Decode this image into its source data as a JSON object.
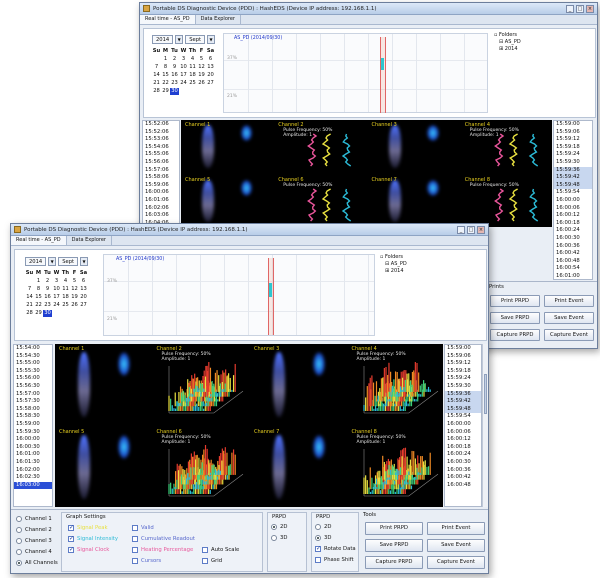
{
  "colors": {
    "signal_peak": "#e8e040",
    "signal_intensity": "#2bbad6",
    "signal_clock": "#e8559a",
    "valid": "#5566cc",
    "selection": "#2b4fd6"
  },
  "back_window": {
    "title": "Portable DS Diagnostic Device (PDD) : HashEDS (Device IP address: 192.168.1.1)",
    "tabs": [
      "Real time - AS_PD",
      "Data Explorer"
    ],
    "calendar": {
      "month": "Sept",
      "year": "2014",
      "headers": [
        "Su",
        "M",
        "Tu",
        "W",
        "Th",
        "F",
        "Sa"
      ],
      "days": [
        "",
        "1",
        "2",
        "3",
        "4",
        "5",
        "6",
        "7",
        "8",
        "9",
        "10",
        "11",
        "12",
        "13",
        "14",
        "15",
        "16",
        "17",
        "18",
        "19",
        "20",
        "21",
        "22",
        "23",
        "24",
        "25",
        "26",
        "27",
        "28",
        "29",
        "30"
      ],
      "selected_day": "30"
    },
    "timeline": {
      "title": "AS_PD (2014/09/30)",
      "y_labels": [
        "37%",
        "21%"
      ]
    },
    "tree": {
      "root": "Folders",
      "items": [
        "AS_PD",
        "2014"
      ]
    },
    "times": [
      "15:52:06",
      "15:52:06",
      "15:53:06",
      "15:54:06",
      "15:55:06",
      "15:56:06",
      "15:57:06",
      "15:58:06",
      "15:59:06",
      "16:00:06",
      "16:01:06",
      "16:02:06",
      "16:03:06",
      "16:04:06"
    ],
    "right_times": [
      "15:59:00",
      "15:59:06",
      "15:59:12",
      "15:59:18",
      "15:59:24",
      "15:59:30",
      "15:59:36",
      "15:59:42",
      "15:59:48",
      "15:59:54",
      "16:00:00",
      "16:00:06",
      "16:00:12",
      "16:00:18",
      "16:00:24",
      "16:00:30",
      "16:00:36",
      "16:00:42",
      "16:00:48",
      "16:00:54",
      "16:01:00"
    ],
    "channels": [
      {
        "label": "Channel 1",
        "info": [],
        "kind": "blob"
      },
      {
        "label": "Channel 2",
        "info": [
          "Pulse Frequency: 50%",
          "Amplitude: 1"
        ],
        "kind": "trace"
      },
      {
        "label": "Channel 3",
        "info": [],
        "kind": "blob"
      },
      {
        "label": "Channel 4",
        "info": [
          "Pulse Frequency: 50%",
          "Amplitude: 1"
        ],
        "kind": "trace"
      },
      {
        "label": "Channel 5",
        "info": [],
        "kind": "blob"
      },
      {
        "label": "Channel 6",
        "info": [
          "Pulse Frequency: 50%"
        ],
        "kind": "trace"
      },
      {
        "label": "Channel 7",
        "info": [],
        "kind": "blob"
      },
      {
        "label": "Channel 8",
        "info": [
          "Pulse Frequency: 50%"
        ],
        "kind": "trace"
      }
    ],
    "buttons": {
      "header": "Prints",
      "print_prpd": "Print PRPD",
      "print_event": "Print Event",
      "save_prpd": "Save PRPD",
      "save_event": "Save Event",
      "capture_prpd": "Capture PRPD",
      "capture_event": "Capture Event"
    }
  },
  "front_window": {
    "title": "Portable DS Diagnostic Device (PDD) : HashEDS (Device IP address: 192.168.1.1)",
    "tabs": [
      "Real time - AS_PD",
      "Data Explorer"
    ],
    "calendar": {
      "month": "Sept",
      "year": "2014",
      "headers": [
        "Su",
        "M",
        "Tu",
        "W",
        "Th",
        "F",
        "Sa"
      ],
      "days": [
        "",
        "1",
        "2",
        "3",
        "4",
        "5",
        "6",
        "7",
        "8",
        "9",
        "10",
        "11",
        "12",
        "13",
        "14",
        "15",
        "16",
        "17",
        "18",
        "19",
        "20",
        "21",
        "22",
        "23",
        "24",
        "25",
        "26",
        "27",
        "28",
        "29",
        "30"
      ],
      "selected_day": "30"
    },
    "timeline": {
      "title": "AS_PD (2014/09/30)",
      "y_labels": [
        "37%",
        "21%"
      ]
    },
    "tree": {
      "root": "Folders",
      "items": [
        "AS_PD",
        "2014"
      ]
    },
    "times": [
      "15:54:00",
      "15:54:30",
      "15:55:00",
      "15:55:30",
      "15:56:00",
      "15:56:30",
      "15:57:00",
      "15:57:30",
      "15:58:00",
      "15:58:30",
      "15:59:00",
      "15:59:30",
      "16:00:00",
      "16:00:30",
      "16:01:00",
      "16:01:30",
      "16:02:00",
      "16:02:30",
      "16:03:00"
    ],
    "right_times": [
      "15:59:00",
      "15:59:06",
      "15:59:12",
      "15:59:18",
      "15:59:24",
      "15:59:30",
      "15:59:36",
      "15:59:42",
      "15:59:48",
      "15:59:54",
      "16:00:00",
      "16:00:06",
      "16:00:12",
      "16:00:18",
      "16:00:24",
      "16:00:30",
      "16:00:36",
      "16:00:42",
      "16:00:48"
    ],
    "channels": [
      {
        "label": "Channel 1",
        "info": [],
        "kind": "blob"
      },
      {
        "label": "Channel 2",
        "info": [
          "Pulse Frequency: 50%",
          "Amplitude: 1"
        ],
        "kind": "plot3d"
      },
      {
        "label": "Channel 3",
        "info": [],
        "kind": "blob"
      },
      {
        "label": "Channel 4",
        "info": [
          "Pulse Frequency: 50%",
          "Amplitude: 1"
        ],
        "kind": "plot3d"
      },
      {
        "label": "Channel 5",
        "info": [],
        "kind": "blob"
      },
      {
        "label": "Channel 6",
        "info": [
          "Pulse Frequency: 50%",
          "Amplitude: 1"
        ],
        "kind": "plot3d"
      },
      {
        "label": "Channel 7",
        "info": [],
        "kind": "blob"
      },
      {
        "label": "Channel 8",
        "info": [
          "Pulse Frequency: 50%",
          "Amplitude: 1"
        ],
        "kind": "plot3d"
      }
    ],
    "channel_select": [
      "Channel 1",
      "Channel 2",
      "Channel 3",
      "Channel 4",
      "All Channels"
    ],
    "channel_selected": "All Channels",
    "graph_settings": {
      "title": "Graph Settings",
      "col1": [
        "Signal Peak",
        "Signal Intensity",
        "Signal Clock"
      ],
      "col2": [
        "Valid",
        "Cumulative Readout",
        "Heating Percentage",
        "Cursors"
      ],
      "col3": [
        "Auto Scale",
        "Grid"
      ]
    },
    "prpd": {
      "title": "PRPD",
      "options": [
        "2D",
        "3D"
      ]
    },
    "prpd2": {
      "title": "PRPD",
      "options": [
        "2D",
        "3D"
      ],
      "checks": [
        "Rotate Data",
        "Phase Shift"
      ]
    },
    "buttons": {
      "header": "Tools",
      "print_prpd": "Print PRPD",
      "print_event": "Print Event",
      "save_prpd": "Save PRPD",
      "save_event": "Save Event",
      "capture_prpd": "Capture PRPD",
      "capture_event": "Capture Event"
    }
  }
}
